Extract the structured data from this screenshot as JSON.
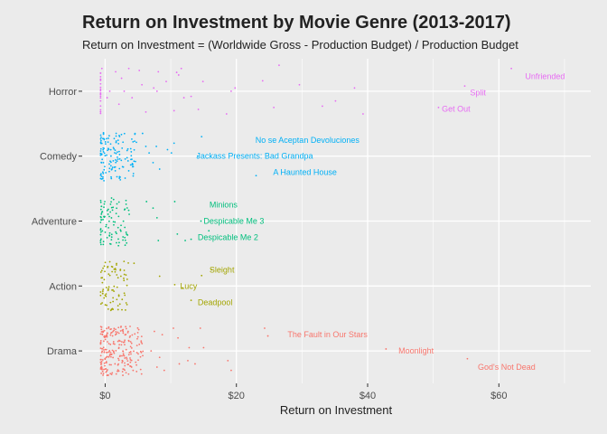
{
  "page": {
    "title": "Return on Investment by Movie Genre (2013-2017)",
    "subtitle": "Return on Investment = (Worldwide Gross - Production Budget) / Production Budget"
  },
  "chart_data": {
    "type": "scatter",
    "title": "Return on Investment by Movie Genre (2013-2017)",
    "subtitle": "Return on Investment = (Worldwide Gross - Production Budget) / Production Budget",
    "xlabel": "Return on Investment",
    "ylabel": "",
    "xlim": [
      -3.5,
      74
    ],
    "x_ticks": [
      0,
      20,
      40,
      60
    ],
    "x_tick_labels": [
      "$0",
      "$20",
      "$40",
      "$60"
    ],
    "categories": [
      "Drama",
      "Action",
      "Adventure",
      "Comedy",
      "Horror"
    ],
    "colors": {
      "Drama": "#f8766d",
      "Action": "#a3a500",
      "Adventure": "#00bf7d",
      "Comedy": "#00b0f6",
      "Horror": "#e76bf3",
      "background": "#ebebeb",
      "grid": "#ffffff"
    },
    "grid": true,
    "legend": "none",
    "cluster_counts": {
      "Drama": 230,
      "Action": 80,
      "Adventure": 95,
      "Comedy": 135,
      "Horror": 20
    },
    "series": [
      {
        "name": "Drama",
        "points": [
          [
            0.8,
            -0.35
          ],
          [
            0.8,
            0.1
          ],
          [
            1.2,
            0.3
          ],
          [
            1.5,
            -0.2
          ],
          [
            3.5,
            0.3
          ],
          [
            5.2,
            0.1
          ],
          [
            7.0,
            0.0
          ],
          [
            7.5,
            0.3
          ],
          [
            7.9,
            -0.25
          ],
          [
            8.3,
            -0.1
          ],
          [
            8.7,
            0.25
          ],
          [
            9.0,
            -0.3
          ],
          [
            10.4,
            0.35
          ],
          [
            11.1,
            0.2
          ],
          [
            11.3,
            -0.2
          ],
          [
            12.6,
            -0.15
          ],
          [
            12.8,
            0.05
          ],
          [
            13.7,
            -0.2
          ],
          [
            14.5,
            0.35
          ],
          [
            15.0,
            0.05
          ],
          [
            18.7,
            -0.15
          ],
          [
            19.2,
            -0.3
          ],
          [
            24.3,
            0.35
          ],
          [
            24.8,
            0.23
          ],
          [
            42.8,
            0.03
          ],
          [
            55.2,
            -0.12
          ]
        ]
      },
      {
        "name": "Action",
        "points": [
          [
            1.0,
            0.3
          ],
          [
            2.4,
            0.15
          ],
          [
            4.4,
            0.35
          ],
          [
            8.3,
            0.15
          ],
          [
            10.6,
            0.02
          ],
          [
            11.8,
            -0.03
          ],
          [
            13.1,
            -0.22
          ],
          [
            14.7,
            0.16
          ],
          [
            16.2,
            0.25
          ]
        ]
      },
      {
        "name": "Adventure",
        "points": [
          [
            6.3,
            0.3
          ],
          [
            7.3,
            0.2
          ],
          [
            7.9,
            0.05
          ],
          [
            8.1,
            -0.3
          ],
          [
            10.6,
            0.3
          ],
          [
            11.0,
            -0.2
          ],
          [
            12.2,
            -0.3
          ],
          [
            13.1,
            -0.28
          ],
          [
            14.6,
            0.0
          ],
          [
            15.8,
            -0.15
          ]
        ]
      },
      {
        "name": "Comedy",
        "points": [
          [
            5.7,
            0.35
          ],
          [
            6.2,
            0.15
          ],
          [
            6.7,
            0.05
          ],
          [
            7.3,
            -0.1
          ],
          [
            7.8,
            0.15
          ],
          [
            8.3,
            -0.2
          ],
          [
            9.5,
            0.1
          ],
          [
            10.1,
            0.05
          ],
          [
            10.5,
            0.2
          ],
          [
            14.1,
            0.0
          ],
          [
            14.7,
            0.3
          ],
          [
            23.0,
            -0.3
          ]
        ]
      },
      {
        "name": "Horror",
        "points": [
          [
            -0.5,
            0.35
          ],
          [
            0.3,
            -0.1
          ],
          [
            0.7,
            0.0
          ],
          [
            1.6,
            0.3
          ],
          [
            2.1,
            -0.2
          ],
          [
            2.5,
            0.2
          ],
          [
            2.9,
            0.0
          ],
          [
            3.6,
            0.35
          ],
          [
            4.1,
            -0.1
          ],
          [
            5.2,
            0.32
          ],
          [
            5.6,
            0.1
          ],
          [
            6.2,
            -0.32
          ],
          [
            7.4,
            0.05
          ],
          [
            7.9,
            0.0
          ],
          [
            8.1,
            0.3
          ],
          [
            9.3,
            0.15
          ],
          [
            10.5,
            -0.3
          ],
          [
            10.9,
            0.29
          ],
          [
            11.2,
            0.25
          ],
          [
            11.6,
            0.35
          ],
          [
            12.0,
            -0.1
          ],
          [
            13.1,
            -0.08
          ],
          [
            14.2,
            -0.28
          ],
          [
            14.9,
            0.15
          ],
          [
            18.5,
            -0.35
          ],
          [
            19.2,
            0.0
          ],
          [
            19.8,
            0.05
          ],
          [
            24.0,
            0.16
          ],
          [
            25.7,
            -0.25
          ],
          [
            26.5,
            0.4
          ],
          [
            29.6,
            0.1
          ],
          [
            33.1,
            -0.23
          ],
          [
            35.1,
            -0.15
          ],
          [
            38.0,
            0.05
          ],
          [
            39.3,
            -0.35
          ],
          [
            50.8,
            -0.25
          ],
          [
            54.8,
            0.08
          ],
          [
            61.9,
            0.35
          ]
        ]
      }
    ],
    "annotations": [
      {
        "text": "Unfriended",
        "genre": "Horror",
        "x": 62.1,
        "y": 0.36,
        "label_x": 64,
        "label_y": 0.23
      },
      {
        "text": "Split",
        "genre": "Horror",
        "x": 54.8,
        "y": 0.08,
        "label_x": 55.6,
        "label_y": -0.02
      },
      {
        "text": "Get Out",
        "genre": "Horror",
        "x": 50.8,
        "y": -0.25,
        "label_x": 51.3,
        "label_y": -0.27
      },
      {
        "text": "No se Aceptan Devoluciones",
        "genre": "Comedy",
        "x": 22.7,
        "y": 0.3,
        "label_x": 22.9,
        "label_y": 0.25
      },
      {
        "text": "Jackass Presents: Bad Grandpa",
        "genre": "Comedy",
        "x": 14.1,
        "y": 0.0,
        "label_x": 13.9,
        "label_y": 0.0
      },
      {
        "text": "A Haunted House",
        "genre": "Comedy",
        "x": 23.0,
        "y": -0.3,
        "label_x": 25.6,
        "label_y": -0.25
      },
      {
        "text": "Minions",
        "genre": "Adventure",
        "x": 15.8,
        "y": 0.25,
        "label_x": 15.9,
        "label_y": 0.25
      },
      {
        "text": "Despicable Me 3",
        "genre": "Adventure",
        "x": 15.0,
        "y": 0.0,
        "label_x": 15.0,
        "label_y": 0.0
      },
      {
        "text": "Despicable Me 2",
        "genre": "Adventure",
        "x": 13.1,
        "y": -0.28,
        "label_x": 14.1,
        "label_y": -0.25
      },
      {
        "text": "Sleight",
        "genre": "Action",
        "x": 15.6,
        "y": 0.23,
        "label_x": 15.9,
        "label_y": 0.25
      },
      {
        "text": "Lucy",
        "genre": "Action",
        "x": 10.6,
        "y": 0.02,
        "label_x": 11.4,
        "label_y": 0.0
      },
      {
        "text": "Deadpool",
        "genre": "Action",
        "x": 13.1,
        "y": -0.22,
        "label_x": 14.1,
        "label_y": -0.25
      },
      {
        "text": "The Fault in Our Stars",
        "genre": "Drama",
        "x": 24.8,
        "y": 0.23,
        "label_x": 27.8,
        "label_y": 0.25
      },
      {
        "text": "Moonlight",
        "genre": "Drama",
        "x": 42.8,
        "y": 0.03,
        "label_x": 44.7,
        "label_y": 0.0
      },
      {
        "text": "God's Not Dead",
        "genre": "Drama",
        "x": 55.2,
        "y": -0.12,
        "label_x": 56.8,
        "label_y": -0.25
      }
    ]
  }
}
